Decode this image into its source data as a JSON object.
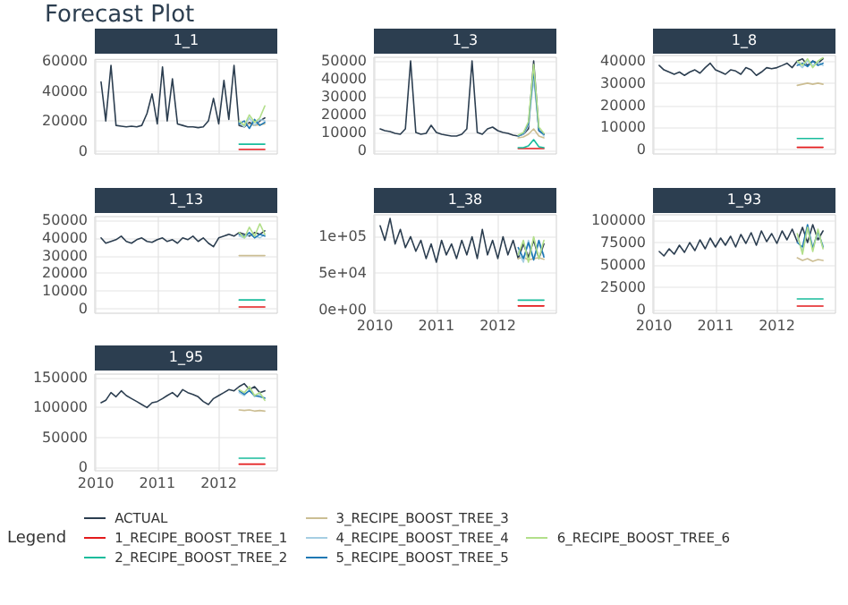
{
  "chart_data": [
    {
      "type": "other",
      "title": "Forecast Plot",
      "legend_title": "Legend"
    },
    {
      "type": "line",
      "title": "1_1",
      "xlim": [
        "2009-12-26",
        "2012-12-14"
      ],
      "xticks": [
        "2010",
        "2011",
        "2012"
      ],
      "ylim": [
        -2000,
        61000
      ],
      "yticks": [
        0,
        20000,
        40000,
        60000
      ],
      "grid": true,
      "legend": "bottom",
      "tick_labels": "y",
      "x": [
        "2010-02",
        "2010-03",
        "2010-04",
        "2010-05",
        "2010-06",
        "2010-07",
        "2010-08",
        "2010-09",
        "2010-10",
        "2010-11",
        "2010-12",
        "2011-01",
        "2011-02",
        "2011-03",
        "2011-04",
        "2011-05",
        "2011-06",
        "2011-07",
        "2011-08",
        "2011-09",
        "2011-10",
        "2011-11",
        "2011-12",
        "2012-01",
        "2012-02",
        "2012-03",
        "2012-04",
        "2012-05",
        "2012-06",
        "2012-07",
        "2012-08",
        "2012-09",
        "2012-10"
      ],
      "series": [
        {
          "name": "ACTUAL",
          "color": "#2c3e50",
          "values": [
            46000,
            20000,
            57000,
            17000,
            16500,
            16000,
            16500,
            16000,
            17000,
            25000,
            38000,
            18000,
            56000,
            20000,
            48000,
            18000,
            17000,
            16000,
            16000,
            15500,
            16000,
            20000,
            35000,
            18000,
            47000,
            21000,
            57000,
            17000,
            16000,
            19000,
            17000,
            20000,
            22000
          ]
        },
        {
          "name": "1_RECIPE_BOOST_TREE_1",
          "color": "#e31a1c",
          "x": [
            "2012-05",
            "2012-06",
            "2012-07",
            "2012-08",
            "2012-09",
            "2012-10"
          ],
          "values": [
            1000,
            1000,
            1000,
            1000,
            1000,
            1000
          ]
        },
        {
          "name": "2_RECIPE_BOOST_TREE_2",
          "color": "#18bc9c",
          "x": [
            "2012-05",
            "2012-06",
            "2012-07",
            "2012-08",
            "2012-09",
            "2012-10"
          ],
          "values": [
            4500,
            4500,
            4500,
            4500,
            4500,
            4500
          ]
        },
        {
          "name": "3_RECIPE_BOOST_TREE_3",
          "color": "#ccbe93",
          "x": [
            "2012-05",
            "2012-06",
            "2012-07",
            "2012-08",
            "2012-09",
            "2012-10"
          ],
          "values": [
            18000,
            17500,
            18000,
            17000,
            17500,
            18000
          ]
        },
        {
          "name": "4_RECIPE_BOOST_TREE_4",
          "color": "#a6cee3",
          "x": [
            "2012-05",
            "2012-06",
            "2012-07",
            "2012-08",
            "2012-09",
            "2012-10"
          ],
          "values": [
            19000,
            16000,
            22000,
            17000,
            21000,
            20000
          ]
        },
        {
          "name": "5_RECIPE_BOOST_TREE_5",
          "color": "#1f78b4",
          "x": [
            "2012-05",
            "2012-06",
            "2012-07",
            "2012-08",
            "2012-09",
            "2012-10"
          ],
          "values": [
            18000,
            20000,
            15000,
            21000,
            17000,
            19000
          ]
        },
        {
          "name": "6_RECIPE_BOOST_TREE_6",
          "color": "#b2df8a",
          "x": [
            "2012-05",
            "2012-06",
            "2012-07",
            "2012-08",
            "2012-09",
            "2012-10"
          ],
          "values": [
            20000,
            17000,
            24000,
            19000,
            22000,
            30000
          ]
        }
      ]
    },
    {
      "type": "line",
      "title": "1_3",
      "xlim": [
        "2009-12-26",
        "2012-12-14"
      ],
      "xticks": [
        "2010",
        "2011",
        "2012"
      ],
      "ylim": [
        -2000,
        52000
      ],
      "yticks": [
        0,
        10000,
        20000,
        30000,
        40000,
        50000
      ],
      "grid": true,
      "legend": "bottom",
      "tick_labels": "y",
      "x": [
        "2010-02",
        "2010-03",
        "2010-04",
        "2010-05",
        "2010-06",
        "2010-07",
        "2010-08",
        "2010-09",
        "2010-10",
        "2010-11",
        "2010-12",
        "2011-01",
        "2011-02",
        "2011-03",
        "2011-04",
        "2011-05",
        "2011-06",
        "2011-07",
        "2011-08",
        "2011-09",
        "2011-10",
        "2011-11",
        "2011-12",
        "2012-01",
        "2012-02",
        "2012-03",
        "2012-04",
        "2012-05",
        "2012-06",
        "2012-07",
        "2012-08",
        "2012-09",
        "2012-10"
      ],
      "series": [
        {
          "name": "ACTUAL",
          "color": "#2c3e50",
          "values": [
            12000,
            11000,
            10500,
            9500,
            9000,
            12000,
            50000,
            10000,
            9000,
            9500,
            14000,
            10000,
            9000,
            8500,
            8000,
            8000,
            9000,
            12000,
            50000,
            10000,
            9000,
            12000,
            13000,
            11000,
            10000,
            9500,
            8500,
            8000,
            9000,
            12000,
            50000,
            11000,
            9000
          ]
        },
        {
          "name": "1_RECIPE_BOOST_TREE_1",
          "color": "#e31a1c",
          "x": [
            "2012-05",
            "2012-06",
            "2012-07",
            "2012-08",
            "2012-09",
            "2012-10"
          ],
          "values": [
            1000,
            1000,
            1000,
            1000,
            1000,
            1000
          ]
        },
        {
          "name": "2_RECIPE_BOOST_TREE_2",
          "color": "#18bc9c",
          "x": [
            "2012-05",
            "2012-06",
            "2012-07",
            "2012-08",
            "2012-09",
            "2012-10"
          ],
          "values": [
            1500,
            1500,
            2500,
            6000,
            2000,
            1500
          ]
        },
        {
          "name": "3_RECIPE_BOOST_TREE_3",
          "color": "#ccbe93",
          "x": [
            "2012-05",
            "2012-06",
            "2012-07",
            "2012-08",
            "2012-09",
            "2012-10"
          ],
          "values": [
            7000,
            7500,
            9000,
            12000,
            8000,
            7000
          ]
        },
        {
          "name": "4_RECIPE_BOOST_TREE_4",
          "color": "#a6cee3",
          "x": [
            "2012-05",
            "2012-06",
            "2012-07",
            "2012-08",
            "2012-09",
            "2012-10"
          ],
          "values": [
            8000,
            9000,
            14000,
            40000,
            12000,
            8000
          ]
        },
        {
          "name": "5_RECIPE_BOOST_TREE_5",
          "color": "#1f78b4",
          "x": [
            "2012-05",
            "2012-06",
            "2012-07",
            "2012-08",
            "2012-09",
            "2012-10"
          ],
          "values": [
            8000,
            9500,
            15000,
            45000,
            11000,
            9000
          ]
        },
        {
          "name": "6_RECIPE_BOOST_TREE_6",
          "color": "#b2df8a",
          "x": [
            "2012-05",
            "2012-06",
            "2012-07",
            "2012-08",
            "2012-09",
            "2012-10"
          ],
          "values": [
            8500,
            10000,
            16000,
            48000,
            13000,
            9500
          ]
        }
      ]
    },
    {
      "type": "line",
      "title": "1_8",
      "xlim": [
        "2009-12-26",
        "2012-12-14"
      ],
      "xticks": [
        "2010",
        "2011",
        "2012"
      ],
      "ylim": [
        -2000,
        42500
      ],
      "yticks": [
        0,
        10000,
        20000,
        30000,
        40000
      ],
      "grid": true,
      "legend": "bottom",
      "tick_labels": "y",
      "x": [
        "2010-02",
        "2010-03",
        "2010-04",
        "2010-05",
        "2010-06",
        "2010-07",
        "2010-08",
        "2010-09",
        "2010-10",
        "2010-11",
        "2010-12",
        "2011-01",
        "2011-02",
        "2011-03",
        "2011-04",
        "2011-05",
        "2011-06",
        "2011-07",
        "2011-08",
        "2011-09",
        "2011-10",
        "2011-11",
        "2011-12",
        "2012-01",
        "2012-02",
        "2012-03",
        "2012-04",
        "2012-05",
        "2012-06",
        "2012-07",
        "2012-08",
        "2012-09",
        "2012-10"
      ],
      "series": [
        {
          "name": "ACTUAL",
          "color": "#2c3e50",
          "values": [
            38000,
            36000,
            35000,
            34000,
            35000,
            33500,
            35000,
            36000,
            34500,
            37000,
            39000,
            36000,
            35000,
            34000,
            36000,
            35500,
            34000,
            37000,
            36000,
            33500,
            35000,
            37000,
            36500,
            37000,
            38000,
            39000,
            37000,
            40000,
            41000,
            38000,
            40000,
            39000,
            41000
          ]
        },
        {
          "name": "1_RECIPE_BOOST_TREE_1",
          "color": "#e31a1c",
          "x": [
            "2012-05",
            "2012-06",
            "2012-07",
            "2012-08",
            "2012-09",
            "2012-10"
          ],
          "values": [
            1000,
            1000,
            1000,
            1000,
            1000,
            1000
          ]
        },
        {
          "name": "2_RECIPE_BOOST_TREE_2",
          "color": "#18bc9c",
          "x": [
            "2012-05",
            "2012-06",
            "2012-07",
            "2012-08",
            "2012-09",
            "2012-10"
          ],
          "values": [
            5000,
            5000,
            5000,
            5000,
            5000,
            5000
          ]
        },
        {
          "name": "3_RECIPE_BOOST_TREE_3",
          "color": "#ccbe93",
          "x": [
            "2012-05",
            "2012-06",
            "2012-07",
            "2012-08",
            "2012-09",
            "2012-10"
          ],
          "values": [
            29000,
            29500,
            30000,
            29500,
            30000,
            29500
          ]
        },
        {
          "name": "4_RECIPE_BOOST_TREE_4",
          "color": "#a6cee3",
          "x": [
            "2012-05",
            "2012-06",
            "2012-07",
            "2012-08",
            "2012-09",
            "2012-10"
          ],
          "values": [
            39000,
            37000,
            40000,
            38000,
            39500,
            38000
          ]
        },
        {
          "name": "5_RECIPE_BOOST_TREE_5",
          "color": "#1f78b4",
          "x": [
            "2012-05",
            "2012-06",
            "2012-07",
            "2012-08",
            "2012-09",
            "2012-10"
          ],
          "values": [
            38000,
            39000,
            37500,
            40000,
            38000,
            39000
          ]
        },
        {
          "name": "6_RECIPE_BOOST_TREE_6",
          "color": "#b2df8a",
          "x": [
            "2012-05",
            "2012-06",
            "2012-07",
            "2012-08",
            "2012-09",
            "2012-10"
          ],
          "values": [
            40000,
            38000,
            41000,
            37000,
            40000,
            41500
          ]
        }
      ]
    },
    {
      "type": "line",
      "title": "1_13",
      "xlim": [
        "2009-12-26",
        "2012-12-14"
      ],
      "xticks": [
        "2010",
        "2011",
        "2012"
      ],
      "ylim": [
        -2500,
        52000
      ],
      "yticks": [
        0,
        10000,
        20000,
        30000,
        40000,
        50000
      ],
      "grid": true,
      "legend": "bottom",
      "tick_labels": "y",
      "x": [
        "2010-02",
        "2010-03",
        "2010-04",
        "2010-05",
        "2010-06",
        "2010-07",
        "2010-08",
        "2010-09",
        "2010-10",
        "2010-11",
        "2010-12",
        "2011-01",
        "2011-02",
        "2011-03",
        "2011-04",
        "2011-05",
        "2011-06",
        "2011-07",
        "2011-08",
        "2011-09",
        "2011-10",
        "2011-11",
        "2011-12",
        "2012-01",
        "2012-02",
        "2012-03",
        "2012-04",
        "2012-05",
        "2012-06",
        "2012-07",
        "2012-08",
        "2012-09",
        "2012-10"
      ],
      "series": [
        {
          "name": "ACTUAL",
          "color": "#2c3e50",
          "values": [
            40000,
            37000,
            38000,
            39000,
            41000,
            38000,
            37000,
            39000,
            40000,
            38000,
            37500,
            39000,
            40000,
            38000,
            39000,
            37000,
            40000,
            39000,
            41000,
            38000,
            40000,
            37000,
            35000,
            40000,
            41000,
            42000,
            41000,
            43000,
            42000,
            41000,
            43000,
            42000,
            44000
          ]
        },
        {
          "name": "1_RECIPE_BOOST_TREE_1",
          "color": "#e31a1c",
          "x": [
            "2012-05",
            "2012-06",
            "2012-07",
            "2012-08",
            "2012-09",
            "2012-10"
          ],
          "values": [
            1000,
            1000,
            1000,
            1000,
            1000,
            1000
          ]
        },
        {
          "name": "2_RECIPE_BOOST_TREE_2",
          "color": "#18bc9c",
          "x": [
            "2012-05",
            "2012-06",
            "2012-07",
            "2012-08",
            "2012-09",
            "2012-10"
          ],
          "values": [
            5000,
            5000,
            5000,
            5000,
            5000,
            5000
          ]
        },
        {
          "name": "3_RECIPE_BOOST_TREE_3",
          "color": "#ccbe93",
          "x": [
            "2012-05",
            "2012-06",
            "2012-07",
            "2012-08",
            "2012-09",
            "2012-10"
          ],
          "values": [
            30000,
            30000,
            30000,
            30000,
            30000,
            30000
          ]
        },
        {
          "name": "4_RECIPE_BOOST_TREE_4",
          "color": "#a6cee3",
          "x": [
            "2012-05",
            "2012-06",
            "2012-07",
            "2012-08",
            "2012-09",
            "2012-10"
          ],
          "values": [
            41000,
            40000,
            42000,
            41000,
            40000,
            42000
          ]
        },
        {
          "name": "5_RECIPE_BOOST_TREE_5",
          "color": "#1f78b4",
          "x": [
            "2012-05",
            "2012-06",
            "2012-07",
            "2012-08",
            "2012-09",
            "2012-10"
          ],
          "values": [
            42000,
            41000,
            43000,
            40000,
            42000,
            41000
          ]
        },
        {
          "name": "6_RECIPE_BOOST_TREE_6",
          "color": "#b2df8a",
          "x": [
            "2012-05",
            "2012-06",
            "2012-07",
            "2012-08",
            "2012-09",
            "2012-10"
          ],
          "values": [
            43000,
            40000,
            46000,
            41000,
            48000,
            42000
          ]
        }
      ]
    },
    {
      "type": "line",
      "title": "1_38",
      "xlim": [
        "2009-12-26",
        "2012-12-14"
      ],
      "xticks": [
        "2010",
        "2011",
        "2012"
      ],
      "ylim": [
        -5000,
        130000
      ],
      "yticks": [
        {
          "value": 0,
          "label": "0e+00"
        },
        {
          "value": 50000,
          "label": "5e+04"
        },
        {
          "value": 100000,
          "label": "1e+05"
        }
      ],
      "grid": true,
      "legend": "bottom",
      "x": [
        "2010-02",
        "2010-03",
        "2010-04",
        "2010-05",
        "2010-06",
        "2010-07",
        "2010-08",
        "2010-09",
        "2010-10",
        "2010-11",
        "2010-12",
        "2011-01",
        "2011-02",
        "2011-03",
        "2011-04",
        "2011-05",
        "2011-06",
        "2011-07",
        "2011-08",
        "2011-09",
        "2011-10",
        "2011-11",
        "2011-12",
        "2012-01",
        "2012-02",
        "2012-03",
        "2012-04",
        "2012-05",
        "2012-06",
        "2012-07",
        "2012-08",
        "2012-09",
        "2012-10"
      ],
      "series": [
        {
          "name": "ACTUAL",
          "color": "#2c3e50",
          "values": [
            115000,
            95000,
            125000,
            90000,
            110000,
            85000,
            100000,
            80000,
            95000,
            70000,
            90000,
            65000,
            95000,
            75000,
            90000,
            70000,
            95000,
            75000,
            100000,
            70000,
            110000,
            75000,
            95000,
            70000,
            100000,
            75000,
            95000,
            70000,
            90000,
            72000,
            95000,
            70000,
            90000
          ]
        },
        {
          "name": "1_RECIPE_BOOST_TREE_1",
          "color": "#e31a1c",
          "x": [
            "2012-05",
            "2012-06",
            "2012-07",
            "2012-08",
            "2012-09",
            "2012-10"
          ],
          "values": [
            5000,
            5000,
            5000,
            5000,
            5000,
            5000
          ]
        },
        {
          "name": "2_RECIPE_BOOST_TREE_2",
          "color": "#18bc9c",
          "x": [
            "2012-05",
            "2012-06",
            "2012-07",
            "2012-08",
            "2012-09",
            "2012-10"
          ],
          "values": [
            13000,
            13000,
            13000,
            13000,
            13000,
            13000
          ]
        },
        {
          "name": "3_RECIPE_BOOST_TREE_3",
          "color": "#ccbe93",
          "x": [
            "2012-05",
            "2012-06",
            "2012-07",
            "2012-08",
            "2012-09",
            "2012-10"
          ],
          "values": [
            70000,
            72000,
            68000,
            70000,
            71000,
            69000
          ]
        },
        {
          "name": "4_RECIPE_BOOST_TREE_4",
          "color": "#a6cee3",
          "x": [
            "2012-05",
            "2012-06",
            "2012-07",
            "2012-08",
            "2012-09",
            "2012-10"
          ],
          "values": [
            80000,
            65000,
            95000,
            70000,
            90000,
            75000
          ]
        },
        {
          "name": "5_RECIPE_BOOST_TREE_5",
          "color": "#1f78b4",
          "x": [
            "2012-05",
            "2012-06",
            "2012-07",
            "2012-08",
            "2012-09",
            "2012-10"
          ],
          "values": [
            85000,
            70000,
            92000,
            68000,
            95000,
            72000
          ]
        },
        {
          "name": "6_RECIPE_BOOST_TREE_6",
          "color": "#b2df8a",
          "x": [
            "2012-05",
            "2012-06",
            "2012-07",
            "2012-08",
            "2012-09",
            "2012-10"
          ],
          "values": [
            75000,
            95000,
            65000,
            100000,
            70000,
            95000
          ]
        }
      ]
    },
    {
      "type": "line",
      "title": "1_93",
      "xlim": [
        "2009-12-26",
        "2012-12-14"
      ],
      "xticks": [
        "2010",
        "2011",
        "2012"
      ],
      "ylim": [
        -4000,
        106000
      ],
      "yticks": [
        0,
        25000,
        50000,
        75000,
        100000
      ],
      "grid": true,
      "legend": "bottom",
      "x": [
        "2010-02",
        "2010-03",
        "2010-04",
        "2010-05",
        "2010-06",
        "2010-07",
        "2010-08",
        "2010-09",
        "2010-10",
        "2010-11",
        "2010-12",
        "2011-01",
        "2011-02",
        "2011-03",
        "2011-04",
        "2011-05",
        "2011-06",
        "2011-07",
        "2011-08",
        "2011-09",
        "2011-10",
        "2011-11",
        "2011-12",
        "2012-01",
        "2012-02",
        "2012-03",
        "2012-04",
        "2012-05",
        "2012-06",
        "2012-07",
        "2012-08",
        "2012-09",
        "2012-10"
      ],
      "series": [
        {
          "name": "ACTUAL",
          "color": "#2c3e50",
          "values": [
            65000,
            60000,
            68000,
            62000,
            72000,
            64000,
            75000,
            66000,
            78000,
            68000,
            80000,
            70000,
            80000,
            72000,
            82000,
            70000,
            84000,
            74000,
            86000,
            72000,
            88000,
            76000,
            85000,
            74000,
            88000,
            78000,
            90000,
            76000,
            92000,
            75000,
            95000,
            78000,
            88000
          ]
        },
        {
          "name": "1_RECIPE_BOOST_TREE_1",
          "color": "#e31a1c",
          "x": [
            "2012-05",
            "2012-06",
            "2012-07",
            "2012-08",
            "2012-09",
            "2012-10"
          ],
          "values": [
            4000,
            4000,
            4000,
            4000,
            4000,
            4000
          ]
        },
        {
          "name": "2_RECIPE_BOOST_TREE_2",
          "color": "#18bc9c",
          "x": [
            "2012-05",
            "2012-06",
            "2012-07",
            "2012-08",
            "2012-09",
            "2012-10"
          ],
          "values": [
            12000,
            12000,
            12000,
            12000,
            12000,
            12000
          ]
        },
        {
          "name": "3_RECIPE_BOOST_TREE_3",
          "color": "#ccbe93",
          "x": [
            "2012-05",
            "2012-06",
            "2012-07",
            "2012-08",
            "2012-09",
            "2012-10"
          ],
          "values": [
            58000,
            55000,
            57000,
            54000,
            56000,
            55000
          ]
        },
        {
          "name": "4_RECIPE_BOOST_TREE_4",
          "color": "#a6cee3",
          "x": [
            "2012-05",
            "2012-06",
            "2012-07",
            "2012-08",
            "2012-09",
            "2012-10"
          ],
          "values": [
            80000,
            65000,
            90000,
            70000,
            85000,
            72000
          ]
        },
        {
          "name": "5_RECIPE_BOOST_TREE_5",
          "color": "#1f78b4",
          "x": [
            "2012-05",
            "2012-06",
            "2012-07",
            "2012-08",
            "2012-09",
            "2012-10"
          ],
          "values": [
            75000,
            70000,
            95000,
            68000,
            88000,
            70000
          ]
        },
        {
          "name": "6_RECIPE_BOOST_TREE_6",
          "color": "#b2df8a",
          "x": [
            "2012-05",
            "2012-06",
            "2012-07",
            "2012-08",
            "2012-09",
            "2012-10"
          ],
          "values": [
            85000,
            62000,
            92000,
            65000,
            90000,
            68000
          ]
        }
      ]
    },
    {
      "type": "line",
      "title": "1_95",
      "xlim": [
        "2009-12-26",
        "2012-12-14"
      ],
      "xticks": [
        "2010",
        "2011",
        "2012"
      ],
      "ylim": [
        -6000,
        156000
      ],
      "yticks": [
        0,
        50000,
        100000,
        150000
      ],
      "grid": true,
      "legend": "bottom",
      "x": [
        "2010-02",
        "2010-03",
        "2010-04",
        "2010-05",
        "2010-06",
        "2010-07",
        "2010-08",
        "2010-09",
        "2010-10",
        "2010-11",
        "2010-12",
        "2011-01",
        "2011-02",
        "2011-03",
        "2011-04",
        "2011-05",
        "2011-06",
        "2011-07",
        "2011-08",
        "2011-09",
        "2011-10",
        "2011-11",
        "2011-12",
        "2012-01",
        "2012-02",
        "2012-03",
        "2012-04",
        "2012-05",
        "2012-06",
        "2012-07",
        "2012-08",
        "2012-09",
        "2012-10"
      ],
      "series": [
        {
          "name": "ACTUAL",
          "color": "#2c3e50",
          "values": [
            108000,
            112000,
            125000,
            118000,
            128000,
            120000,
            115000,
            110000,
            105000,
            100000,
            108000,
            110000,
            115000,
            120000,
            125000,
            118000,
            130000,
            125000,
            122000,
            118000,
            110000,
            105000,
            115000,
            120000,
            125000,
            130000,
            128000,
            135000,
            140000,
            130000,
            135000,
            125000,
            128000
          ]
        },
        {
          "name": "1_RECIPE_BOOST_TREE_1",
          "color": "#e31a1c",
          "x": [
            "2012-05",
            "2012-06",
            "2012-07",
            "2012-08",
            "2012-09",
            "2012-10"
          ],
          "values": [
            5000,
            5000,
            5000,
            5000,
            5000,
            5000
          ]
        },
        {
          "name": "2_RECIPE_BOOST_TREE_2",
          "color": "#18bc9c",
          "x": [
            "2012-05",
            "2012-06",
            "2012-07",
            "2012-08",
            "2012-09",
            "2012-10"
          ],
          "values": [
            15000,
            15000,
            15000,
            15000,
            15000,
            15000
          ]
        },
        {
          "name": "3_RECIPE_BOOST_TREE_3",
          "color": "#ccbe93",
          "x": [
            "2012-05",
            "2012-06",
            "2012-07",
            "2012-08",
            "2012-09",
            "2012-10"
          ],
          "values": [
            96000,
            95000,
            96000,
            94000,
            95000,
            94000
          ]
        },
        {
          "name": "4_RECIPE_BOOST_TREE_4",
          "color": "#a6cee3",
          "x": [
            "2012-05",
            "2012-06",
            "2012-07",
            "2012-08",
            "2012-09",
            "2012-10"
          ],
          "values": [
            125000,
            120000,
            130000,
            118000,
            122000,
            115000
          ]
        },
        {
          "name": "5_RECIPE_BOOST_TREE_5",
          "color": "#1f78b4",
          "x": [
            "2012-05",
            "2012-06",
            "2012-07",
            "2012-08",
            "2012-09",
            "2012-10"
          ],
          "values": [
            128000,
            122000,
            128000,
            120000,
            118000,
            116000
          ]
        },
        {
          "name": "6_RECIPE_BOOST_TREE_6",
          "color": "#b2df8a",
          "x": [
            "2012-05",
            "2012-06",
            "2012-07",
            "2012-08",
            "2012-09",
            "2012-10"
          ],
          "values": [
            130000,
            125000,
            135000,
            120000,
            125000,
            112000
          ]
        }
      ]
    }
  ]
}
